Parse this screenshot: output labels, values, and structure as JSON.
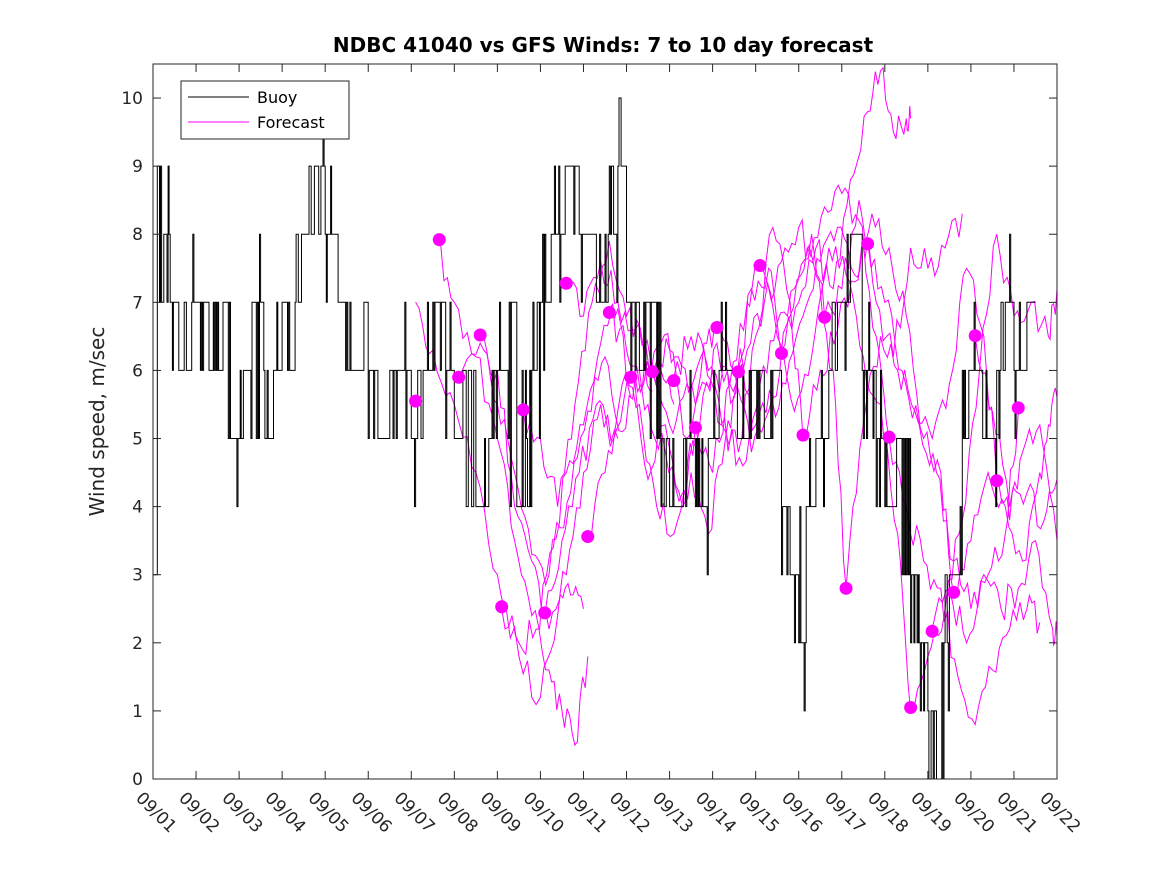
{
  "chart_data": {
    "type": "line",
    "title": "NDBC 41040 vs GFS Winds: 7 to 10 day forecast",
    "xlabel": "",
    "ylabel": "Wind speed, m/sec",
    "ylim": [
      0,
      10.5
    ],
    "xlim": [
      0,
      21
    ],
    "yticks": [
      0,
      1,
      2,
      3,
      4,
      5,
      6,
      7,
      8,
      9,
      10
    ],
    "xtick_labels": [
      "09/01",
      "09/02",
      "09/03",
      "09/04",
      "09/05",
      "09/06",
      "09/07",
      "09/08",
      "09/09",
      "09/10",
      "09/11",
      "09/12",
      "09/13",
      "09/14",
      "09/15",
      "09/16",
      "09/17",
      "09/18",
      "09/19",
      "09/20",
      "09/21",
      "09/22"
    ],
    "legend": {
      "position": "top-left",
      "entries": [
        "Buoy",
        "Forecast"
      ]
    },
    "colors": {
      "buoy": "#000000",
      "forecast": "#ff00ff"
    },
    "buoy_levels": [
      [
        0.0,
        3
      ],
      [
        0.1,
        9
      ],
      [
        0.2,
        7
      ],
      [
        0.25,
        8
      ],
      [
        0.4,
        7
      ],
      [
        0.6,
        6
      ],
      [
        0.9,
        7
      ],
      [
        1.3,
        6
      ],
      [
        1.6,
        7
      ],
      [
        1.8,
        5
      ],
      [
        2.1,
        6
      ],
      [
        2.3,
        7
      ],
      [
        2.6,
        5
      ],
      [
        2.8,
        6
      ],
      [
        3.0,
        7
      ],
      [
        3.2,
        6
      ],
      [
        3.3,
        7
      ],
      [
        3.45,
        8
      ],
      [
        3.6,
        9
      ],
      [
        3.7,
        8
      ],
      [
        3.9,
        9
      ],
      [
        4.0,
        8
      ],
      [
        4.3,
        7
      ],
      [
        4.6,
        6
      ],
      [
        4.9,
        7
      ],
      [
        5.0,
        6
      ],
      [
        5.2,
        5
      ],
      [
        5.5,
        6
      ],
      [
        6.0,
        5
      ],
      [
        6.3,
        6
      ],
      [
        6.5,
        7
      ],
      [
        6.8,
        6
      ],
      [
        7.0,
        5
      ],
      [
        7.2,
        6
      ],
      [
        7.5,
        4
      ],
      [
        7.8,
        5
      ],
      [
        8.0,
        6
      ],
      [
        8.3,
        7
      ],
      [
        8.5,
        4
      ],
      [
        8.8,
        6
      ],
      [
        9.0,
        7
      ],
      [
        9.3,
        8
      ],
      [
        9.6,
        9
      ],
      [
        9.9,
        8
      ],
      [
        10.3,
        7
      ],
      [
        10.6,
        8
      ],
      [
        10.8,
        9
      ],
      [
        11.0,
        7
      ],
      [
        11.3,
        6
      ],
      [
        11.5,
        7
      ],
      [
        11.8,
        5
      ],
      [
        12.0,
        4
      ],
      [
        12.3,
        5
      ],
      [
        12.6,
        4
      ],
      [
        12.9,
        5
      ],
      [
        13.2,
        6
      ],
      [
        13.6,
        5
      ],
      [
        13.9,
        6
      ],
      [
        14.2,
        5
      ],
      [
        14.4,
        6
      ],
      [
        14.6,
        4
      ],
      [
        14.8,
        3
      ],
      [
        15.0,
        2
      ],
      [
        15.2,
        4
      ],
      [
        15.4,
        5
      ],
      [
        15.7,
        6
      ],
      [
        15.9,
        7
      ],
      [
        16.2,
        8
      ],
      [
        16.5,
        6
      ],
      [
        16.8,
        5
      ],
      [
        17.0,
        4
      ],
      [
        17.3,
        5
      ],
      [
        17.6,
        3
      ],
      [
        17.8,
        2
      ],
      [
        18.0,
        1
      ],
      [
        18.2,
        0
      ],
      [
        18.4,
        2
      ],
      [
        18.6,
        3
      ],
      [
        18.8,
        5
      ],
      [
        19.0,
        6
      ],
      [
        19.3,
        5
      ],
      [
        19.6,
        6
      ],
      [
        19.8,
        7
      ],
      [
        20.0,
        6
      ],
      [
        20.3,
        7
      ],
      [
        20.5,
        7
      ]
    ],
    "forecast_points": [
      [
        6.1,
        5.55
      ],
      [
        6.65,
        7.92
      ],
      [
        7.1,
        5.9
      ],
      [
        7.6,
        6.52
      ],
      [
        8.1,
        2.53
      ],
      [
        8.6,
        5.42
      ],
      [
        9.1,
        2.44
      ],
      [
        9.6,
        7.28
      ],
      [
        10.1,
        3.56
      ],
      [
        10.6,
        6.85
      ],
      [
        11.1,
        5.9
      ],
      [
        11.6,
        5.98
      ],
      [
        12.1,
        5.85
      ],
      [
        12.6,
        5.16
      ],
      [
        13.1,
        6.63
      ],
      [
        13.6,
        5.98
      ],
      [
        14.1,
        7.54
      ],
      [
        14.6,
        6.25
      ],
      [
        15.1,
        5.05
      ],
      [
        15.6,
        6.78
      ],
      [
        16.1,
        2.8
      ],
      [
        16.6,
        7.86
      ],
      [
        17.1,
        5.02
      ],
      [
        17.6,
        1.05
      ],
      [
        18.1,
        2.17
      ],
      [
        18.6,
        2.74
      ],
      [
        19.1,
        6.51
      ],
      [
        19.6,
        4.38
      ],
      [
        20.1,
        5.45
      ]
    ],
    "forecast_series": [
      [
        [
          6.1,
          7.0
        ],
        [
          6.5,
          6.3
        ],
        [
          7.0,
          5.5
        ],
        [
          7.5,
          4.5
        ],
        [
          8.0,
          3.0
        ],
        [
          8.5,
          1.8
        ],
        [
          9.0,
          1.2
        ],
        [
          9.4,
          2.4
        ],
        [
          9.7,
          2.7
        ],
        [
          10.0,
          2.5
        ]
      ],
      [
        [
          6.6,
          7.9
        ],
        [
          7.0,
          7.0
        ],
        [
          7.5,
          6.2
        ],
        [
          8.0,
          5.0
        ],
        [
          8.4,
          3.5
        ],
        [
          8.8,
          2.4
        ],
        [
          9.2,
          1.6
        ],
        [
          9.5,
          1.0
        ],
        [
          9.8,
          0.5
        ],
        [
          10.1,
          1.8
        ]
      ],
      [
        [
          7.1,
          5.9
        ],
        [
          7.6,
          6.4
        ],
        [
          8.0,
          6.0
        ],
        [
          8.4,
          4.0
        ],
        [
          8.8,
          3.2
        ],
        [
          9.2,
          2.2
        ],
        [
          9.6,
          3.0
        ],
        [
          10.0,
          4.5
        ],
        [
          10.4,
          5.5
        ],
        [
          10.8,
          5.0
        ]
      ],
      [
        [
          7.6,
          6.5
        ],
        [
          8.0,
          5.5
        ],
        [
          8.4,
          4.5
        ],
        [
          8.8,
          3.3
        ],
        [
          9.2,
          3.0
        ],
        [
          9.6,
          4.5
        ],
        [
          10.0,
          5.2
        ],
        [
          10.4,
          6.4
        ],
        [
          10.8,
          6.9
        ],
        [
          11.1,
          5.6
        ]
      ],
      [
        [
          8.1,
          2.5
        ],
        [
          8.5,
          2.0
        ],
        [
          8.9,
          2.2
        ],
        [
          9.3,
          3.4
        ],
        [
          9.7,
          4.2
        ],
        [
          10.1,
          5.4
        ],
        [
          10.5,
          6.2
        ],
        [
          10.9,
          5.1
        ],
        [
          11.3,
          6.0
        ],
        [
          11.6,
          5.7
        ]
      ],
      [
        [
          8.6,
          5.4
        ],
        [
          9.0,
          5.0
        ],
        [
          9.4,
          4.0
        ],
        [
          9.8,
          5.5
        ],
        [
          10.2,
          7.0
        ],
        [
          10.6,
          7.9
        ],
        [
          11.0,
          6.8
        ],
        [
          11.4,
          6.3
        ],
        [
          11.8,
          6.0
        ],
        [
          12.1,
          5.5
        ]
      ],
      [
        [
          9.1,
          2.4
        ],
        [
          9.5,
          3.5
        ],
        [
          9.9,
          4.5
        ],
        [
          10.3,
          5.5
        ],
        [
          10.7,
          5.0
        ],
        [
          11.1,
          6.0
        ],
        [
          11.5,
          4.4
        ],
        [
          11.9,
          5.2
        ],
        [
          12.3,
          4.0
        ],
        [
          12.6,
          5.2
        ]
      ],
      [
        [
          9.6,
          7.3
        ],
        [
          10.0,
          6.8
        ],
        [
          10.4,
          7.6
        ],
        [
          10.8,
          7.0
        ],
        [
          11.2,
          6.6
        ],
        [
          11.6,
          6.0
        ],
        [
          12.0,
          6.3
        ],
        [
          12.4,
          5.0
        ],
        [
          12.8,
          6.4
        ],
        [
          13.1,
          6.6
        ]
      ],
      [
        [
          10.1,
          3.6
        ],
        [
          10.5,
          4.5
        ],
        [
          10.9,
          5.8
        ],
        [
          11.3,
          5.5
        ],
        [
          11.7,
          4.0
        ],
        [
          12.1,
          3.6
        ],
        [
          12.5,
          4.5
        ],
        [
          12.9,
          3.6
        ],
        [
          13.3,
          5.0
        ],
        [
          13.6,
          6.0
        ]
      ],
      [
        [
          10.6,
          6.9
        ],
        [
          11.0,
          6.3
        ],
        [
          11.4,
          5.8
        ],
        [
          11.8,
          6.4
        ],
        [
          12.2,
          6.2
        ],
        [
          12.6,
          5.5
        ],
        [
          13.0,
          6.0
        ],
        [
          13.4,
          5.8
        ],
        [
          13.8,
          7.0
        ],
        [
          14.1,
          7.5
        ]
      ],
      [
        [
          11.1,
          5.9
        ],
        [
          11.5,
          5.5
        ],
        [
          11.9,
          4.8
        ],
        [
          12.3,
          4.2
        ],
        [
          12.7,
          5.2
        ],
        [
          13.1,
          6.4
        ],
        [
          13.5,
          5.6
        ],
        [
          13.9,
          7.2
        ],
        [
          14.3,
          7.5
        ],
        [
          14.6,
          6.2
        ]
      ],
      [
        [
          11.6,
          6.0
        ],
        [
          12.0,
          5.2
        ],
        [
          12.4,
          5.8
        ],
        [
          12.8,
          6.3
        ],
        [
          13.2,
          5.2
        ],
        [
          13.6,
          4.8
        ],
        [
          14.0,
          6.5
        ],
        [
          14.4,
          8.1
        ],
        [
          14.8,
          7.0
        ],
        [
          15.1,
          5.0
        ]
      ],
      [
        [
          12.1,
          5.9
        ],
        [
          12.5,
          6.5
        ],
        [
          12.9,
          6.0
        ],
        [
          13.3,
          5.1
        ],
        [
          13.7,
          4.6
        ],
        [
          14.1,
          5.8
        ],
        [
          14.5,
          6.7
        ],
        [
          14.9,
          7.2
        ],
        [
          15.3,
          8.0
        ],
        [
          15.6,
          6.8
        ]
      ],
      [
        [
          12.6,
          5.2
        ],
        [
          13.0,
          4.5
        ],
        [
          13.4,
          5.8
        ],
        [
          13.8,
          6.3
        ],
        [
          14.2,
          7.0
        ],
        [
          14.6,
          7.6
        ],
        [
          15.0,
          8.1
        ],
        [
          15.4,
          7.4
        ],
        [
          15.8,
          6.0
        ],
        [
          16.1,
          2.8
        ]
      ],
      [
        [
          13.1,
          6.6
        ],
        [
          13.5,
          6.0
        ],
        [
          13.9,
          4.8
        ],
        [
          14.3,
          5.4
        ],
        [
          14.7,
          5.8
        ],
        [
          15.1,
          6.8
        ],
        [
          15.5,
          7.6
        ],
        [
          15.9,
          8.1
        ],
        [
          16.3,
          7.4
        ],
        [
          16.6,
          7.9
        ]
      ],
      [
        [
          13.6,
          6.0
        ],
        [
          14.0,
          5.2
        ],
        [
          14.4,
          5.6
        ],
        [
          14.8,
          6.8
        ],
        [
          15.2,
          7.8
        ],
        [
          15.6,
          8.4
        ],
        [
          16.0,
          8.6
        ],
        [
          16.4,
          8.2
        ],
        [
          16.8,
          6.5
        ],
        [
          17.1,
          5.0
        ]
      ],
      [
        [
          14.1,
          7.5
        ],
        [
          14.5,
          6.5
        ],
        [
          14.9,
          5.4
        ],
        [
          15.3,
          6.2
        ],
        [
          15.7,
          7.8
        ],
        [
          16.1,
          7.4
        ],
        [
          16.5,
          6.2
        ],
        [
          16.9,
          5.5
        ],
        [
          17.3,
          3.6
        ],
        [
          17.6,
          1.0
        ]
      ],
      [
        [
          14.6,
          6.3
        ],
        [
          15.0,
          7.0
        ],
        [
          15.4,
          7.8
        ],
        [
          15.8,
          7.2
        ],
        [
          16.2,
          8.8
        ],
        [
          16.6,
          9.8
        ],
        [
          16.9,
          10.4
        ],
        [
          17.2,
          9.5
        ],
        [
          17.5,
          9.7
        ],
        [
          17.6,
          9.7
        ]
      ],
      [
        [
          15.1,
          5.0
        ],
        [
          15.5,
          6.0
        ],
        [
          15.9,
          6.6
        ],
        [
          16.3,
          7.3
        ],
        [
          16.7,
          8.3
        ],
        [
          17.1,
          7.8
        ],
        [
          17.5,
          6.8
        ],
        [
          17.9,
          5.0
        ],
        [
          18.3,
          4.5
        ],
        [
          18.6,
          2.7
        ]
      ],
      [
        [
          15.6,
          6.8
        ],
        [
          16.0,
          7.2
        ],
        [
          16.4,
          8.5
        ],
        [
          16.8,
          7.0
        ],
        [
          17.2,
          6.2
        ],
        [
          17.6,
          7.8
        ],
        [
          18.0,
          7.5
        ],
        [
          18.4,
          7.8
        ],
        [
          18.8,
          8.3
        ]
      ],
      [
        [
          16.1,
          2.8
        ],
        [
          16.5,
          5.2
        ],
        [
          16.9,
          6.5
        ],
        [
          17.3,
          6.0
        ],
        [
          17.7,
          5.4
        ],
        [
          18.1,
          5.0
        ],
        [
          18.5,
          5.8
        ],
        [
          18.9,
          7.5
        ],
        [
          19.3,
          6.5
        ],
        [
          19.6,
          4.4
        ]
      ],
      [
        [
          16.6,
          7.9
        ],
        [
          17.0,
          7.0
        ],
        [
          17.4,
          6.0
        ],
        [
          17.8,
          5.2
        ],
        [
          18.2,
          4.5
        ],
        [
          18.6,
          3.2
        ],
        [
          19.0,
          2.5
        ],
        [
          19.4,
          3.0
        ],
        [
          19.8,
          3.6
        ],
        [
          20.1,
          5.4
        ]
      ],
      [
        [
          17.1,
          5.0
        ],
        [
          17.5,
          4.0
        ],
        [
          17.9,
          3.2
        ],
        [
          18.3,
          2.8
        ],
        [
          18.7,
          1.5
        ],
        [
          19.1,
          0.8
        ],
        [
          19.5,
          1.6
        ],
        [
          19.9,
          2.2
        ],
        [
          20.3,
          2.5
        ],
        [
          20.6,
          2.3
        ]
      ],
      [
        [
          17.6,
          1.0
        ],
        [
          18.0,
          1.8
        ],
        [
          18.4,
          2.5
        ],
        [
          18.8,
          3.8
        ],
        [
          19.2,
          6.0
        ],
        [
          19.6,
          8.0
        ],
        [
          20.0,
          6.8
        ],
        [
          20.4,
          7.0
        ],
        [
          20.8,
          6.5
        ],
        [
          21.0,
          7.2
        ]
      ],
      [
        [
          18.1,
          2.2
        ],
        [
          18.5,
          2.8
        ],
        [
          18.9,
          2.0
        ],
        [
          19.3,
          3.0
        ],
        [
          19.7,
          2.5
        ],
        [
          20.1,
          2.8
        ],
        [
          20.5,
          3.5
        ],
        [
          20.9,
          2.2
        ],
        [
          21.0,
          2.1
        ]
      ],
      [
        [
          18.6,
          2.7
        ],
        [
          19.0,
          3.5
        ],
        [
          19.4,
          4.5
        ],
        [
          19.8,
          4.0
        ],
        [
          20.2,
          3.2
        ],
        [
          20.6,
          4.5
        ],
        [
          20.8,
          5.2
        ],
        [
          21.0,
          5.6
        ]
      ],
      [
        [
          19.1,
          6.5
        ],
        [
          19.5,
          5.4
        ],
        [
          19.9,
          4.0
        ],
        [
          20.3,
          4.2
        ],
        [
          20.7,
          3.8
        ],
        [
          21.0,
          4.4
        ]
      ],
      [
        [
          19.6,
          4.4
        ],
        [
          19.9,
          3.8
        ],
        [
          20.2,
          4.8
        ],
        [
          20.6,
          5.2
        ],
        [
          21.0,
          3.5
        ]
      ]
    ]
  }
}
